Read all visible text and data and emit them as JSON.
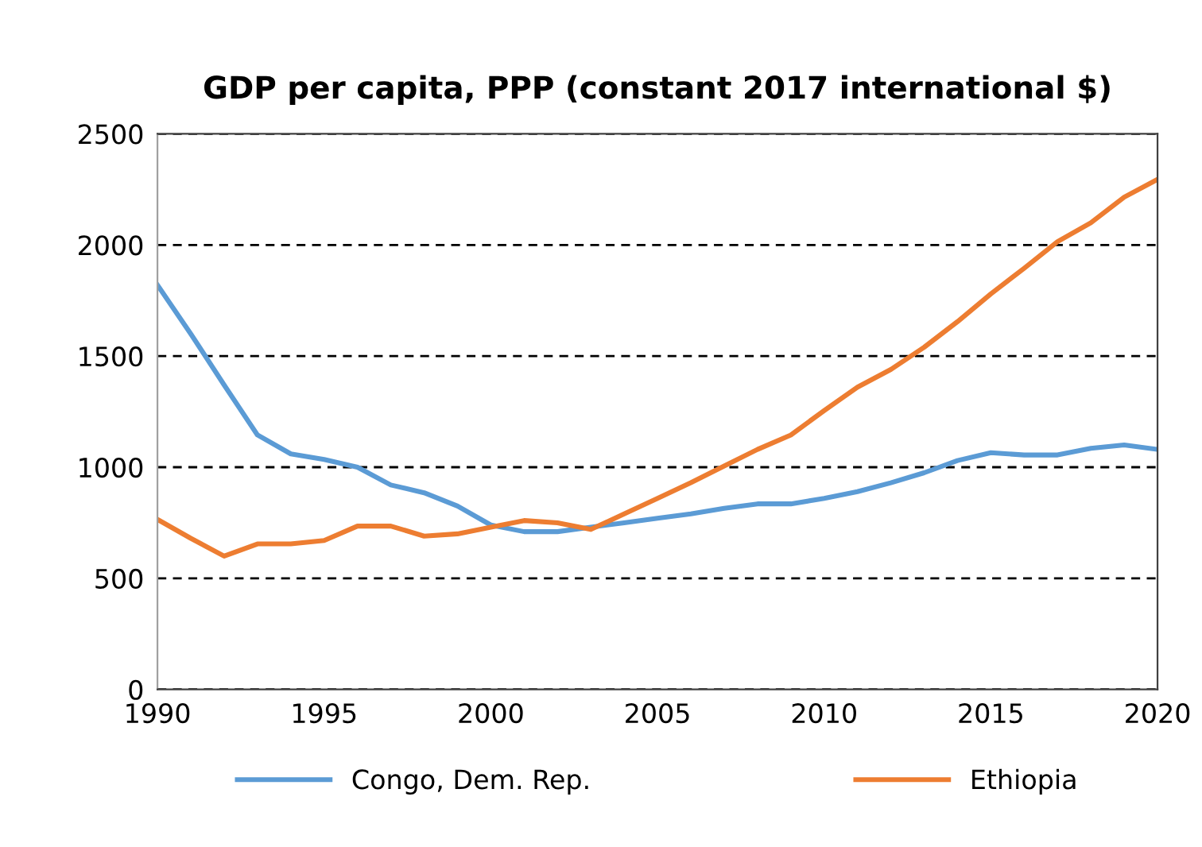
{
  "chart_data": {
    "type": "line",
    "title": "GDP per capita, PPP (constant 2017 international $)",
    "x": [
      1990,
      1991,
      1992,
      1993,
      1994,
      1995,
      1996,
      1997,
      1998,
      1999,
      2000,
      2001,
      2002,
      2003,
      2004,
      2005,
      2006,
      2007,
      2008,
      2009,
      2010,
      2011,
      2012,
      2013,
      2014,
      2015,
      2016,
      2017,
      2018,
      2019,
      2020
    ],
    "series": [
      {
        "name": "Congo, Dem. Rep.",
        "color": "#5b9bd5",
        "values": [
          1820,
          1600,
          1370,
          1145,
          1060,
          1035,
          1000,
          920,
          885,
          825,
          740,
          710,
          710,
          730,
          750,
          770,
          790,
          815,
          835,
          835,
          860,
          890,
          930,
          975,
          1030,
          1065,
          1055,
          1055,
          1085,
          1100,
          1080
        ]
      },
      {
        "name": "Ethiopia",
        "color": "#ed7d31",
        "values": [
          765,
          680,
          600,
          655,
          655,
          670,
          735,
          735,
          690,
          700,
          730,
          760,
          750,
          720,
          790,
          860,
          930,
          1005,
          1080,
          1145,
          1255,
          1360,
          1440,
          1540,
          1655,
          1780,
          1895,
          2015,
          2100,
          2215,
          2295
        ]
      }
    ],
    "xlim": [
      1990,
      2020
    ],
    "xticks": [
      1990,
      1995,
      2000,
      2005,
      2010,
      2015,
      2020
    ],
    "ylim": [
      0,
      2500
    ],
    "yticks": [
      0,
      500,
      1000,
      1500,
      2000,
      2500
    ],
    "grid": "y",
    "legend": "bottom",
    "marker": "none",
    "line_style": "solid"
  }
}
